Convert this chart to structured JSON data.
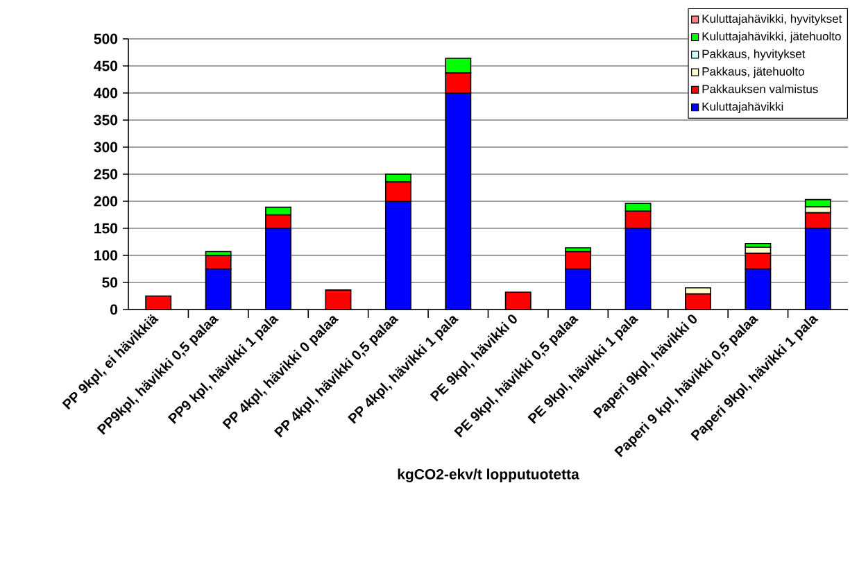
{
  "chart_data": {
    "type": "bar",
    "stacked": true,
    "xlabel": "kgCO2-ekv/t lopputuotetta",
    "categories": [
      "PP 9kpl, ei hävikkiä",
      "PP9kpl, hävikki 0,5 palaa",
      "PP9 kpl, hävikki 1 pala",
      "PP 4kpl, hävikki 0 palaa",
      "PP 4kpl, hävikki 0,5 palaa",
      "PP 4kpl, hävikki 1 pala",
      "PE 9kpl, hävikki 0",
      "PE 9kpl, hävikki 0,5 palaa",
      "PE 9kpl, hävikki 1 pala",
      "Paperi 9kpl, hävikki 0",
      "Paperi 9 kpl, hävikki 0,5 palaa",
      "Paperi 9kpl, hävikki 1 pala"
    ],
    "series": [
      {
        "name": "Kuluttajahävikki",
        "color": "#0000ff",
        "values": [
          null,
          75,
          150,
          null,
          200,
          400,
          null,
          75,
          150,
          null,
          75,
          150
        ]
      },
      {
        "name": "Pakkauksen valmistus",
        "color": "#ff0000",
        "values": [
          25,
          25,
          25,
          36,
          36,
          37,
          32,
          32,
          32,
          29,
          29,
          29
        ]
      },
      {
        "name": "Pakkaus, jätehuolto",
        "color": "#ffffcc",
        "values": [
          null,
          null,
          null,
          null,
          null,
          null,
          null,
          null,
          null,
          11,
          11,
          11
        ]
      },
      {
        "name": "Pakkaus, hyvitykset",
        "color": "#ccffff",
        "values": [
          null,
          null,
          null,
          null,
          null,
          null,
          null,
          null,
          null,
          null,
          null,
          null
        ]
      },
      {
        "name": "Kuluttajahävikki, jätehuolto",
        "color": "#00ff00",
        "values": [
          null,
          7,
          14,
          null,
          14,
          27,
          null,
          7,
          14,
          null,
          7,
          13
        ]
      },
      {
        "name": "Kuluttajahävikki, hyvitykset",
        "color": "#ff8080",
        "values": [
          null,
          null,
          null,
          null,
          null,
          null,
          null,
          null,
          null,
          null,
          null,
          null
        ]
      }
    ],
    "ylim": [
      0,
      500
    ],
    "yticks": [
      0,
      50,
      100,
      150,
      200,
      250,
      300,
      350,
      400,
      450,
      500
    ],
    "grid": "y",
    "legend": "top right"
  }
}
